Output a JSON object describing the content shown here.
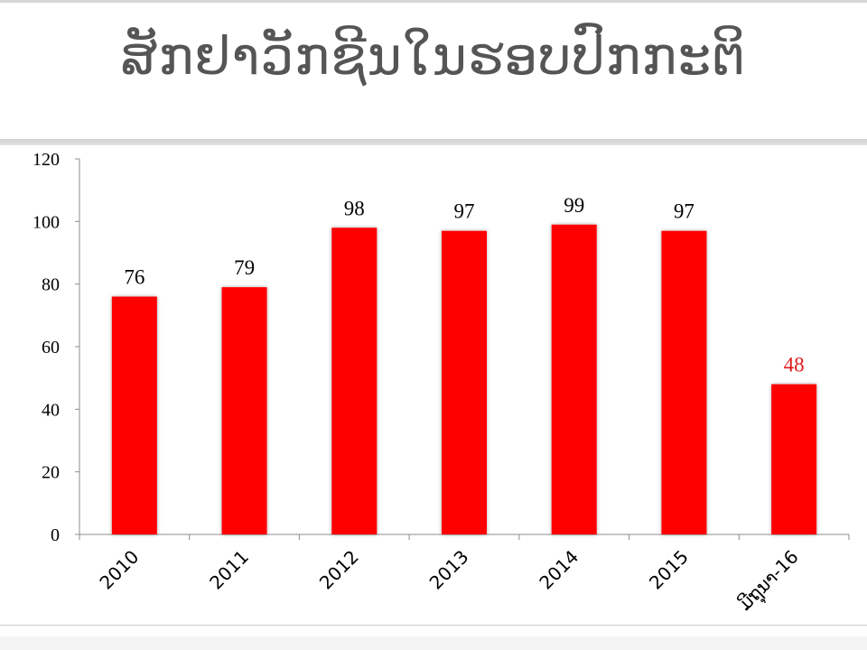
{
  "slide": {
    "title": "ສັກຢາວັກຊີນໃນຮອບປົກກະຕິ"
  },
  "colors": {
    "bar": "#ff0000",
    "highlight_label": "#e11b1b",
    "label": "#000000"
  },
  "chart_data": {
    "type": "bar",
    "categories": [
      "2010",
      "2011",
      "2012",
      "2013",
      "2014",
      "2015",
      "ມີຖຸນາ-16"
    ],
    "values": [
      76,
      79,
      98,
      97,
      99,
      97,
      48
    ],
    "data_labels": [
      "76",
      "79",
      "98",
      "97",
      "99",
      "97",
      "48"
    ],
    "highlighted_index": 6,
    "ylim": [
      0,
      120
    ],
    "yticks": [
      0,
      20,
      40,
      60,
      80,
      100,
      120
    ],
    "xlabel": "",
    "ylabel": "",
    "grid": false,
    "legend": "none"
  }
}
